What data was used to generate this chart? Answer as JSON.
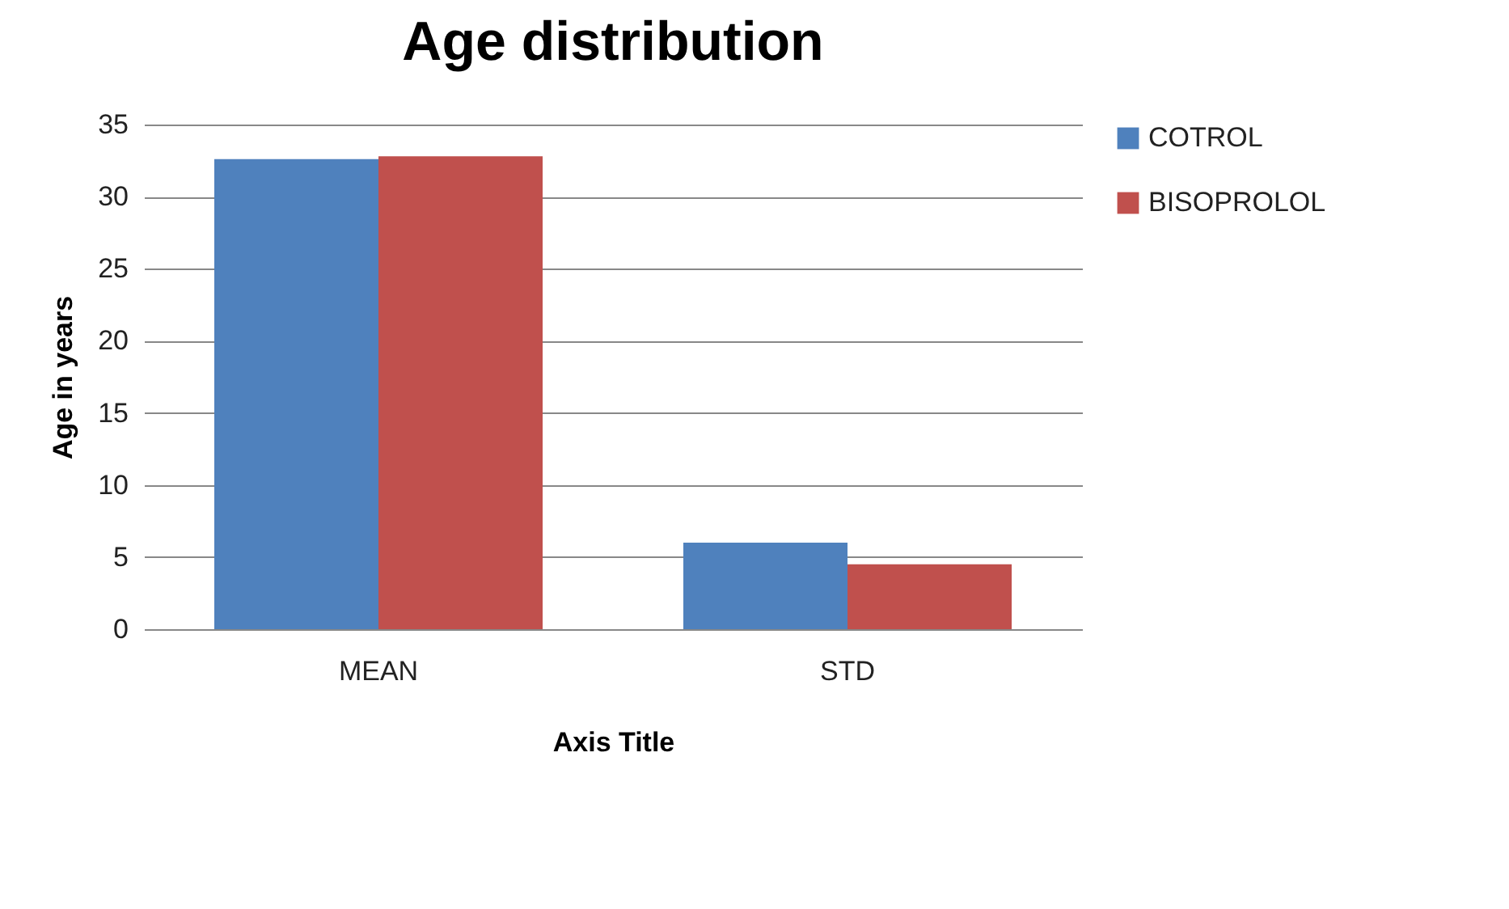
{
  "chart_data": {
    "type": "bar",
    "title": "Age distribution",
    "xlabel": "Axis Title",
    "ylabel": "Age in years",
    "categories": [
      "MEAN",
      "STD"
    ],
    "series": [
      {
        "name": "COTROL",
        "color": "#4f81bd",
        "values": [
          32.6,
          6.0
        ]
      },
      {
        "name": "BISOPROLOL",
        "color": "#c0504d",
        "values": [
          32.8,
          4.5
        ]
      }
    ],
    "ylim": [
      0,
      35
    ],
    "yticks": [
      0,
      5,
      10,
      15,
      20,
      25,
      30,
      35
    ],
    "grid": "y",
    "legend": "right"
  }
}
